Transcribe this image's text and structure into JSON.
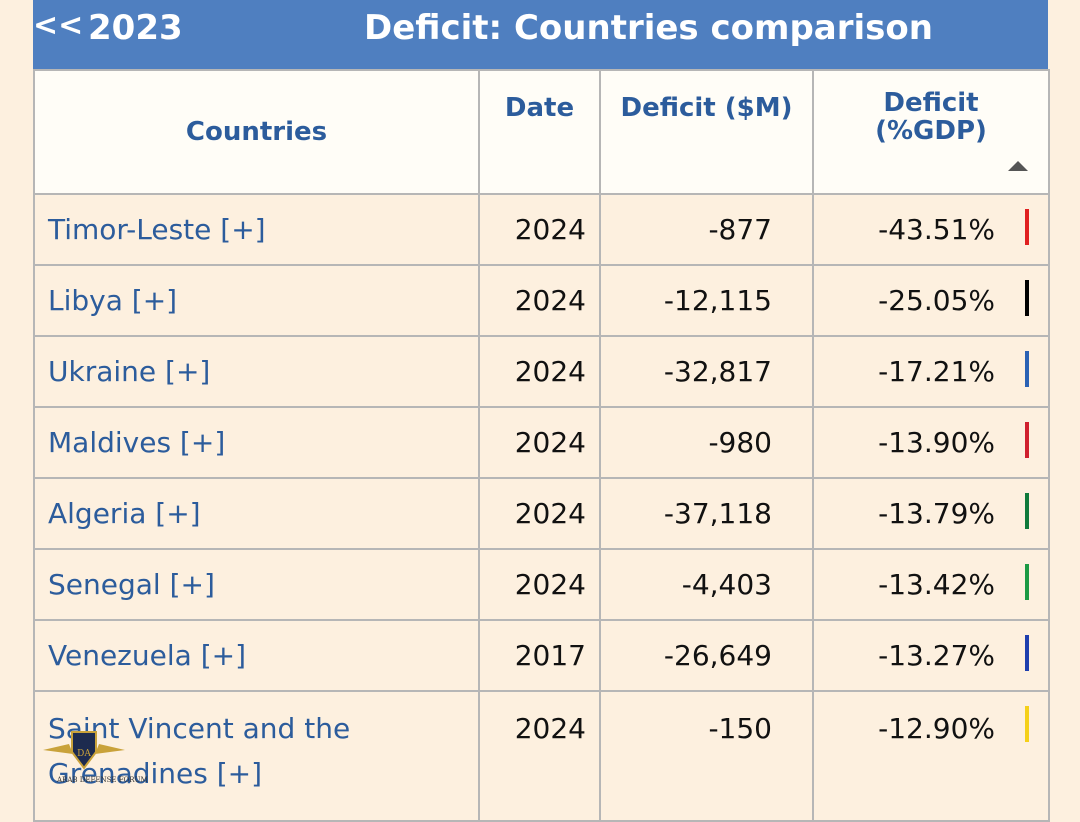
{
  "header": {
    "back_label": "<<",
    "year": "2023",
    "title": "Deficit: Countries comparison"
  },
  "columns": {
    "countries": "Countries",
    "date": "Date",
    "deficit_usd": "Deficit ($M)",
    "deficit_gdp_line1": "Deficit",
    "deficit_gdp_line2": "(%GDP)"
  },
  "rows": [
    {
      "country": "Timor-Leste [+]",
      "date": "2024",
      "deficit": "-877",
      "pct": "-43.51%",
      "color": "#e02020"
    },
    {
      "country": "Libya [+]",
      "date": "2024",
      "deficit": "-12,115",
      "pct": "-25.05%",
      "color": "#000000"
    },
    {
      "country": "Ukraine [+]",
      "date": "2024",
      "deficit": "-32,817",
      "pct": "-17.21%",
      "color": "#2b62b4"
    },
    {
      "country": "Maldives [+]",
      "date": "2024",
      "deficit": "-980",
      "pct": "-13.90%",
      "color": "#d0202e"
    },
    {
      "country": "Algeria [+]",
      "date": "2024",
      "deficit": "-37,118",
      "pct": "-13.79%",
      "color": "#0f7a3b"
    },
    {
      "country": "Senegal [+]",
      "date": "2024",
      "deficit": "-4,403",
      "pct": "-13.42%",
      "color": "#1c9a44"
    },
    {
      "country": "Venezuela [+]",
      "date": "2017",
      "deficit": "-26,649",
      "pct": "-13.27%",
      "color": "#1f3fae"
    },
    {
      "country": "Saint Vincent and the Grenadines [+]",
      "date": "2024",
      "deficit": "-150",
      "pct": "-12.90%",
      "color": "#f5d019"
    }
  ],
  "watermark": {
    "badge": "DA",
    "text": "ARAB DEFENSE FORUM"
  }
}
